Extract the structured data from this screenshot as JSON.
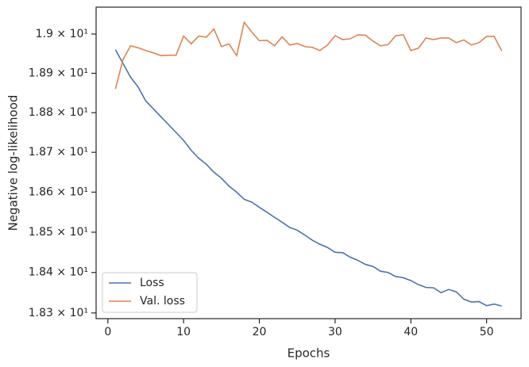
{
  "chart_data": {
    "type": "line",
    "xlabel": "Epochs",
    "ylabel": "Negative log-likelihood",
    "x": [
      1,
      2,
      3,
      4,
      5,
      6,
      7,
      8,
      9,
      10,
      11,
      12,
      13,
      14,
      15,
      16,
      17,
      18,
      19,
      20,
      21,
      22,
      23,
      24,
      25,
      26,
      27,
      28,
      29,
      30,
      31,
      32,
      33,
      34,
      35,
      36,
      37,
      38,
      39,
      40,
      41,
      42,
      43,
      44,
      45,
      46,
      47,
      48,
      49,
      50,
      51,
      52
    ],
    "series": [
      {
        "name": "Loss",
        "color": "#4c72b0",
        "values": [
          18.96,
          18.925,
          18.89,
          18.865,
          18.83,
          18.81,
          18.79,
          18.77,
          18.75,
          18.73,
          18.705,
          18.685,
          18.67,
          18.65,
          18.635,
          18.615,
          18.6,
          18.582,
          18.575,
          18.562,
          18.55,
          18.537,
          18.525,
          18.512,
          18.505,
          18.493,
          18.48,
          18.47,
          18.462,
          18.45,
          18.449,
          18.438,
          18.43,
          18.42,
          18.415,
          18.403,
          18.4,
          18.39,
          18.387,
          18.38,
          18.37,
          18.363,
          18.362,
          18.35,
          18.358,
          18.352,
          18.334,
          18.327,
          18.328,
          18.318,
          18.322,
          18.317
        ]
      },
      {
        "name": "Val. loss",
        "color": "#dd8452",
        "values": [
          18.86,
          18.935,
          18.97,
          18.965,
          18.958,
          18.952,
          18.945,
          18.946,
          18.946,
          18.995,
          18.975,
          18.995,
          18.992,
          19.013,
          18.968,
          18.975,
          18.945,
          19.03,
          19.005,
          18.983,
          18.984,
          18.97,
          18.993,
          18.972,
          18.976,
          18.968,
          18.966,
          18.958,
          18.972,
          18.996,
          18.986,
          18.988,
          18.998,
          18.997,
          18.982,
          18.97,
          18.973,
          18.996,
          18.998,
          18.958,
          18.964,
          18.99,
          18.986,
          18.99,
          18.99,
          18.978,
          18.985,
          18.972,
          18.978,
          18.994,
          18.994,
          18.957
        ]
      }
    ],
    "xlim": [
      -1.55,
      54.55
    ],
    "xticks": [
      0,
      10,
      20,
      30,
      40,
      50
    ],
    "ylim": [
      18.286,
      19.069
    ],
    "ylog": true,
    "yticks": [
      {
        "value": 18.3,
        "label": "1.83 × 10¹"
      },
      {
        "value": 18.4,
        "label": "1.84 × 10¹"
      },
      {
        "value": 18.5,
        "label": "1.85 × 10¹"
      },
      {
        "value": 18.6,
        "label": "1.86 × 10¹"
      },
      {
        "value": 18.7,
        "label": "1.87 × 10¹"
      },
      {
        "value": 18.8,
        "label": "1.88 × 10¹"
      },
      {
        "value": 18.9,
        "label": "1.89 × 10¹"
      },
      {
        "value": 19,
        "label": "1.9 × 10¹"
      }
    ],
    "legend": "lower left",
    "grid": false
  }
}
